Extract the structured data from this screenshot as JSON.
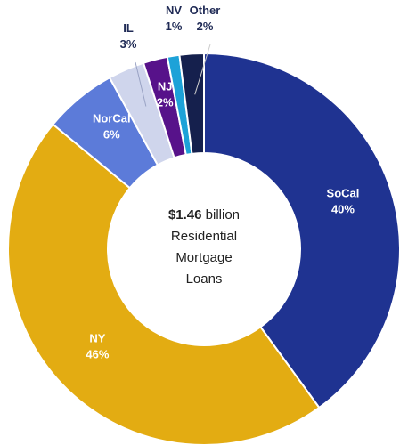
{
  "chart_data": {
    "type": "pie",
    "subtype": "donut",
    "center_text": {
      "amount": "$1.46",
      "amount_suffix": " billion",
      "line2": "Residential",
      "line3": "Mortgage",
      "line4": "Loans"
    },
    "slices": [
      {
        "category": "SoCal",
        "value": 40,
        "label": "40%",
        "color": "#1f3391",
        "label_color": "#ffffff",
        "label_position": "inside"
      },
      {
        "category": "NY",
        "value": 46,
        "label": "46%",
        "color": "#e3ac12",
        "label_color": "#ffffff",
        "label_position": "inside"
      },
      {
        "category": "NorCal",
        "value": 6,
        "label": "6%",
        "color": "#5c7bd9",
        "label_color": "#ffffff",
        "label_position": "inside"
      },
      {
        "category": "IL",
        "value": 3,
        "label": "3%",
        "color": "#cfd5ec",
        "label_color": "#1f2a55",
        "label_position": "outside"
      },
      {
        "category": "NJ",
        "value": 2,
        "label": "2%",
        "color": "#57128a",
        "label_color": "#ffffff",
        "label_position": "inside"
      },
      {
        "category": "NV",
        "value": 1,
        "label": "1%",
        "color": "#1da2d8",
        "label_color": "#1f2a55",
        "label_position": "outside"
      },
      {
        "category": "Other",
        "value": 2,
        "label": "2%",
        "color": "#15204d",
        "label_color": "#1f2a55",
        "label_position": "outside"
      }
    ]
  }
}
